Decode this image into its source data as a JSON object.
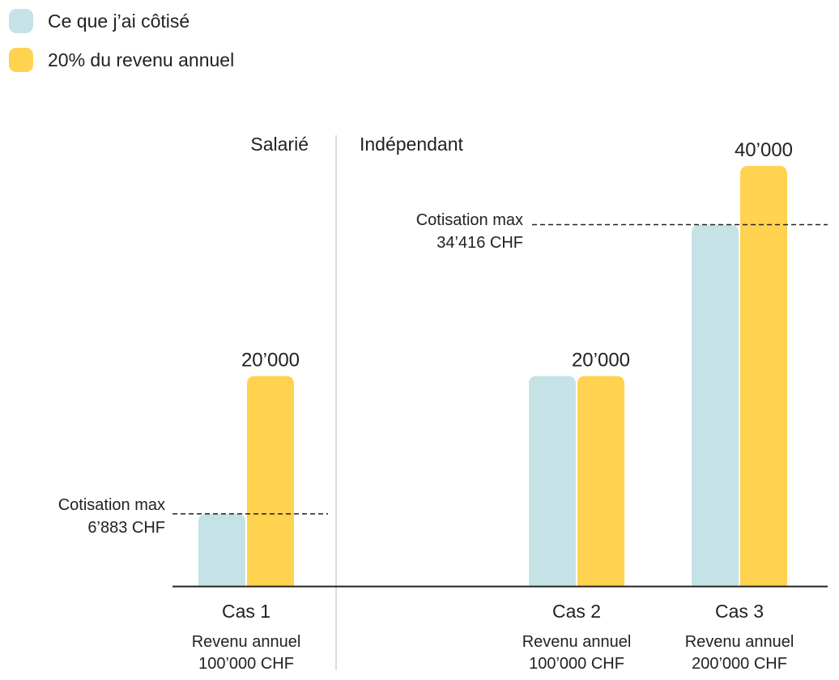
{
  "chart_data": {
    "type": "bar",
    "colors": {
      "contributed": "#c5e3e6",
      "twenty_pct": "#ffd24f"
    },
    "legend": [
      {
        "key": "contributed",
        "label": "Ce que j’ai côtisé"
      },
      {
        "key": "twenty_pct",
        "label": "20% du revenu annuel"
      }
    ],
    "groups": [
      {
        "label": "Salarié"
      },
      {
        "label": "Indépendant"
      }
    ],
    "categories": [
      {
        "label": "Cas 1",
        "group": 0,
        "sub_label": [
          "Revenu annuel",
          "100’000 CHF"
        ]
      },
      {
        "label": "Cas 2",
        "group": 1,
        "sub_label": [
          "Revenu annuel",
          "100’000 CHF"
        ]
      },
      {
        "label": "Cas 3",
        "group": 1,
        "sub_label": [
          "Revenu annuel",
          "200’000 CHF"
        ]
      }
    ],
    "series": [
      {
        "key": "contributed",
        "values": [
          6883,
          20000,
          34416
        ]
      },
      {
        "key": "twenty_pct",
        "values": [
          20000,
          20000,
          40000
        ]
      }
    ],
    "value_labels": [
      {
        "category": 0,
        "text": "20’000"
      },
      {
        "category": 1,
        "text": "20’000"
      },
      {
        "category": 2,
        "text": "40’000"
      }
    ],
    "thresholds": [
      {
        "group": 0,
        "value": 6883,
        "label": [
          "Cotisation max",
          "6’883 CHF"
        ]
      },
      {
        "group": 1,
        "value": 34416,
        "label": [
          "Cotisation max",
          "34’416 CHF"
        ]
      }
    ],
    "ylim": [
      0,
      40000
    ],
    "grid": false,
    "legend_position": "top-left"
  }
}
